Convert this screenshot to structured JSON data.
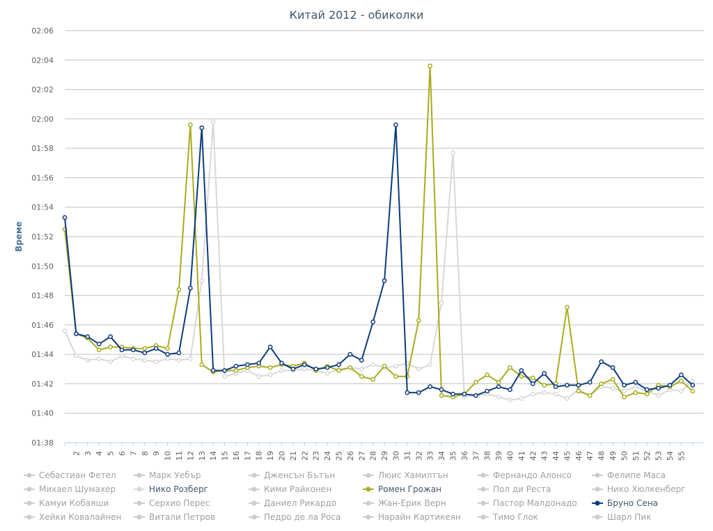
{
  "chart_data": {
    "type": "line",
    "title": "Китай 2012 - обиколки",
    "ylabel": "Време",
    "xlabel": "",
    "ylim": [
      "01:38",
      "02:06"
    ],
    "y_ticks": [
      "01:38",
      "01:40",
      "01:42",
      "01:44",
      "01:46",
      "01:48",
      "01:50",
      "01:52",
      "01:54",
      "01:56",
      "01:58",
      "02:00",
      "02:02",
      "02:04",
      "02:06"
    ],
    "x": [
      1,
      2,
      3,
      4,
      5,
      6,
      7,
      8,
      9,
      10,
      11,
      12,
      13,
      14,
      15,
      16,
      17,
      18,
      19,
      20,
      21,
      22,
      23,
      24,
      25,
      26,
      27,
      28,
      29,
      30,
      31,
      32,
      33,
      34,
      35,
      36,
      37,
      38,
      39,
      40,
      41,
      42,
      43,
      44,
      45,
      46,
      47,
      48,
      49,
      50,
      51,
      52,
      53,
      54,
      55,
      56
    ],
    "x_tick_labels": [
      "2",
      "3",
      "4",
      "5",
      "6",
      "7",
      "8",
      "9",
      "10",
      "11",
      "12",
      "13",
      "14",
      "15",
      "16",
      "17",
      "18",
      "19",
      "20",
      "21",
      "22",
      "23",
      "24",
      "25",
      "26",
      "27",
      "28",
      "29",
      "30",
      "31",
      "32",
      "33",
      "34",
      "35",
      "36",
      "37",
      "38",
      "39",
      "40",
      "41",
      "42",
      "43",
      "44",
      "45",
      "46",
      "47",
      "48",
      "49",
      "50",
      "51",
      "52",
      "53",
      "54",
      "55"
    ],
    "grid": true,
    "legend_position": "bottom",
    "series": [
      {
        "name": "Нико Розберг",
        "color": "#d8d8d8",
        "visible": true,
        "values": [
          "01:45.6",
          "01:43.9",
          "01:43.6",
          "01:43.7",
          "01:43.5",
          "01:43.9",
          "01:43.7",
          "01:43.6",
          "01:43.5",
          "01:43.7",
          "01:43.6",
          "01:43.7",
          "01:49.0",
          "01:59.8",
          "01:42.5",
          "01:42.7",
          "01:42.9",
          "01:42.5",
          "01:42.6",
          "01:42.9",
          "01:42.9",
          "01:43.0",
          "01:42.9",
          "01:42.7",
          "01:43.0",
          "01:43.1",
          "01:43.0",
          "01:43.3",
          "01:43.1",
          "01:43.2",
          "01:43.4",
          "01:43.0",
          "01:43.3",
          "01:47.5",
          "01:57.7",
          "01:41.1",
          "01:41.2",
          "01:41.3",
          "01:41.1",
          "01:40.9",
          "01:41.0",
          "01:41.3",
          "01:41.4",
          "01:41.3",
          "01:41.0",
          "01:41.6",
          "01:41.2",
          "01:41.8",
          "01:41.7",
          "01:41.5",
          "01:41.8",
          "01:41.5",
          "01:41.2",
          "01:41.6",
          "01:41.5",
          "01:42.2"
        ]
      },
      {
        "name": "Ромен Грожан",
        "color": "#a8ab1e",
        "visible": true,
        "values": [
          "01:52.5",
          "01:45.4",
          "01:45.1",
          "01:44.3",
          "01:44.5",
          "01:44.5",
          "01:44.4",
          "01:44.4",
          "01:44.6",
          "01:44.4",
          "01:48.4",
          "01:59.6",
          "01:43.3",
          "01:42.8",
          "01:42.9",
          "01:42.9",
          "01:43.1",
          "01:43.2",
          "01:43.1",
          "01:43.3",
          "01:43.2",
          "01:43.4",
          "01:42.9",
          "01:43.2",
          "01:42.9",
          "01:43.1",
          "01:42.5",
          "01:42.3",
          "01:43.2",
          "01:42.5",
          "01:42.5",
          "01:46.3",
          "02:03.6",
          "01:41.2",
          "01:41.1",
          "01:41.3",
          "01:42.1",
          "01:42.6",
          "01:42.1",
          "01:43.1",
          "01:42.5",
          "01:42.4",
          "01:41.9",
          "01:42.0",
          "01:47.2",
          "01:41.5",
          "01:41.2",
          "01:42.0",
          "01:42.3",
          "01:41.1",
          "01:41.4",
          "01:41.3",
          "01:41.9",
          "01:41.8",
          "01:42.2",
          "01:41.5"
        ]
      },
      {
        "name": "Бруно Сена",
        "color": "#0b3a7d",
        "visible": true,
        "values": [
          "01:53.3",
          "01:45.4",
          "01:45.2",
          "01:44.7",
          "01:45.2",
          "01:44.3",
          "01:44.3",
          "01:44.1",
          "01:44.4",
          "01:44.0",
          "01:44.1",
          "01:48.5",
          "01:59.4",
          "01:42.9",
          "01:42.9",
          "01:43.2",
          "01:43.3",
          "01:43.4",
          "01:44.5",
          "01:43.4",
          "01:43.0",
          "01:43.3",
          "01:43.0",
          "01:43.1",
          "01:43.3",
          "01:44.0",
          "01:43.6",
          "01:46.2",
          "01:49.0",
          "01:59.6",
          "01:41.4",
          "01:41.4",
          "01:41.8",
          "01:41.6",
          "01:41.3",
          "01:41.3",
          "01:41.2",
          "01:41.5",
          "01:41.8",
          "01:41.6",
          "01:42.9",
          "01:42.0",
          "01:42.7",
          "01:41.8",
          "01:41.9",
          "01:41.9",
          "01:42.1",
          "01:43.5",
          "01:43.1",
          "01:41.9",
          "01:42.1",
          "01:41.6",
          "01:41.7",
          "01:41.9",
          "01:42.6",
          "01:41.9"
        ]
      }
    ],
    "legend": {
      "rows": [
        [
          {
            "label": "Себастиан Фетел",
            "active": false
          },
          {
            "label": "Марк Уебър",
            "active": false
          },
          {
            "label": "Дженсън Бътън",
            "active": false
          },
          {
            "label": "Люис Хамилтън",
            "active": false
          },
          {
            "label": "Фернандо Алонсо",
            "active": false
          },
          {
            "label": "Фелипе Маса",
            "active": false
          }
        ],
        [
          {
            "label": "Михаел Шумахер",
            "active": false
          },
          {
            "label": "Нико Розберг",
            "active": true,
            "color": "#d8d8d8"
          },
          {
            "label": "Кими Райконен",
            "active": false
          },
          {
            "label": "Ромен Грожан",
            "active": true,
            "color": "#a8ab1e"
          },
          {
            "label": "Пол ди Реста",
            "active": false
          },
          {
            "label": "Нико Хюлкенберг",
            "active": false
          }
        ],
        [
          {
            "label": "Камуи Кобаяши",
            "active": false
          },
          {
            "label": "Серхио Перес",
            "active": false
          },
          {
            "label": "Даниел Рикардо",
            "active": false
          },
          {
            "label": "Жан-Ерик Верн",
            "active": false
          },
          {
            "label": "Пастор Малдонадо",
            "active": false
          },
          {
            "label": "Бруно Сена",
            "active": true,
            "color": "#0b3a7d"
          }
        ],
        [
          {
            "label": "Хейки Ковалайнен",
            "active": false
          },
          {
            "label": "Витали Петров",
            "active": false
          },
          {
            "label": "Педро де ла Роса",
            "active": false
          },
          {
            "label": "Нарайн Картикеян",
            "active": false
          },
          {
            "label": "Тимо Глок",
            "active": false
          },
          {
            "label": "Шарл Пик",
            "active": false
          }
        ]
      ],
      "inactive_color": "#cccccc",
      "inactive_text_color": "#a0a0a0",
      "active_text_color": "#3e576f"
    }
  }
}
